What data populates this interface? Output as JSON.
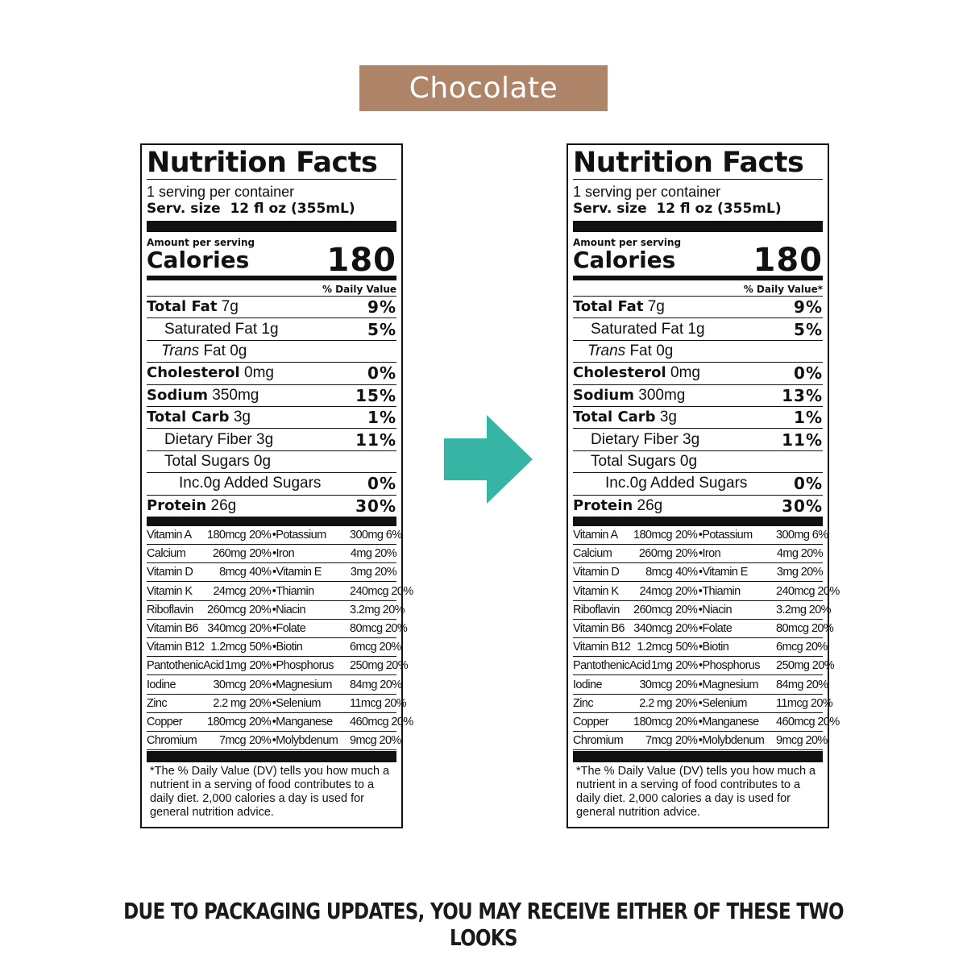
{
  "flavor": "Chocolate",
  "panels": [
    {
      "title": "Nutrition Facts",
      "servings_per_container": "1 serving per container",
      "serving_size_label": "Serv. size",
      "serving_size_value": "12 fl oz (355mL)",
      "amount_per_serving": "Amount per serving",
      "calories_label": "Calories",
      "calories_value": "180",
      "dv_header": "% Daily Value",
      "nutrients": [
        {
          "name": "Total Fat",
          "amount": "7g",
          "dv": "9%"
        },
        {
          "name": "Saturated Fat",
          "amount": "1g",
          "dv": "5%"
        },
        {
          "name_italic": "Trans",
          "name": "Fat",
          "amount": "0g",
          "dv": ""
        },
        {
          "name": "Cholesterol",
          "amount": "0mg",
          "dv": "0%"
        },
        {
          "name": "Sodium",
          "amount": "350mg",
          "dv": "15%"
        },
        {
          "name": "Total Carb",
          "amount": "3g",
          "dv": "1%"
        },
        {
          "name": "Dietary Fiber",
          "amount": "3g",
          "dv": "11%"
        },
        {
          "name": "Total Sugars",
          "amount": "0g",
          "dv": ""
        },
        {
          "name": "Inc.0g Added Sugars",
          "amount": "",
          "dv": "0%"
        },
        {
          "name": "Protein",
          "amount": "26g",
          "dv": "30%"
        }
      ],
      "vitamins": [
        {
          "n1": "Vitamin A",
          "a1": "180mcg",
          "d1": "20%",
          "n2": "Potassium",
          "a2": "300mg",
          "d2": "6%"
        },
        {
          "n1": "Calcium",
          "a1": "260mg",
          "d1": "20%",
          "n2": "Iron",
          "a2": "4mg",
          "d2": "20%"
        },
        {
          "n1": "Vitamin D",
          "a1": "8mcg",
          "d1": "40%",
          "n2": "Vitamin E",
          "a2": "3mg",
          "d2": "20%"
        },
        {
          "n1": "Vitamin K",
          "a1": "24mcg",
          "d1": "20%",
          "n2": "Thiamin",
          "a2": "240mcg",
          "d2": "20%"
        },
        {
          "n1": "Riboflavin",
          "a1": "260mcg",
          "d1": "20%",
          "n2": "Niacin",
          "a2": "3.2mg",
          "d2": "20%"
        },
        {
          "n1": "Vitamin B6",
          "a1": "340mcg",
          "d1": "20%",
          "n2": "Folate",
          "a2": "80mcg",
          "d2": "20%"
        },
        {
          "n1": "Vitamin B12",
          "a1": "1.2mcg",
          "d1": "50%",
          "n2": "Biotin",
          "a2": "6mcg",
          "d2": "20%"
        },
        {
          "n1": "PantothenicAcid",
          "a1": "1mg",
          "d1": "20%",
          "n2": "Phosphorus",
          "a2": "250mg",
          "d2": "20%"
        },
        {
          "n1": "Iodine",
          "a1": "30mcg",
          "d1": "20%",
          "n2": "Magnesium",
          "a2": "84mg",
          "d2": "20%"
        },
        {
          "n1": "Zinc",
          "a1": "2.2 mg",
          "d1": "20%",
          "n2": "Selenium",
          "a2": "11mcg",
          "d2": "20%"
        },
        {
          "n1": "Copper",
          "a1": "180mcg",
          "d1": "20%",
          "n2": "Manganese",
          "a2": "460mcg",
          "d2": "20%"
        },
        {
          "n1": "Chromium",
          "a1": "7mcg",
          "d1": "20%",
          "n2": "Molybdenum",
          "a2": "9mcg",
          "d2": "20%"
        }
      ],
      "footnote": "*The % Daily Value (DV) tells you how much a nutrient in a serving of food contributes to a daily diet. 2,000 calories a day is used for general nutrition advice."
    },
    {
      "title": "Nutrition Facts",
      "servings_per_container": "1 serving per container",
      "serving_size_label": "Serv. size",
      "serving_size_value": "12 fl oz (355mL)",
      "amount_per_serving": "Amount per serving",
      "calories_label": "Calories",
      "calories_value": "180",
      "dv_header": "% Daily Value*",
      "nutrients": [
        {
          "name": "Total Fat",
          "amount": "7g",
          "dv": "9%"
        },
        {
          "name": "Saturated Fat",
          "amount": "1g",
          "dv": "5%"
        },
        {
          "name_italic": "Trans",
          "name": "Fat",
          "amount": "0g",
          "dv": ""
        },
        {
          "name": "Cholesterol",
          "amount": "0mg",
          "dv": "0%"
        },
        {
          "name": "Sodium",
          "amount": "300mg",
          "dv": "13%"
        },
        {
          "name": "Total Carb",
          "amount": "3g",
          "dv": "1%"
        },
        {
          "name": "Dietary Fiber",
          "amount": "3g",
          "dv": "11%"
        },
        {
          "name": "Total Sugars",
          "amount": "0g",
          "dv": ""
        },
        {
          "name": "Inc.0g Added Sugars",
          "amount": "",
          "dv": "0%"
        },
        {
          "name": "Protein",
          "amount": "26g",
          "dv": "30%"
        }
      ],
      "vitamins": [
        {
          "n1": "Vitamin A",
          "a1": "180mcg",
          "d1": "20%",
          "n2": "Potassium",
          "a2": "300mg",
          "d2": "6%"
        },
        {
          "n1": "Calcium",
          "a1": "260mg",
          "d1": "20%",
          "n2": "Iron",
          "a2": "4mg",
          "d2": "20%"
        },
        {
          "n1": "Vitamin D",
          "a1": "8mcg",
          "d1": "40%",
          "n2": "Vitamin E",
          "a2": "3mg",
          "d2": "20%"
        },
        {
          "n1": "Vitamin K",
          "a1": "24mcg",
          "d1": "20%",
          "n2": "Thiamin",
          "a2": "240mcg",
          "d2": "20%"
        },
        {
          "n1": "Riboflavin",
          "a1": "260mcg",
          "d1": "20%",
          "n2": "Niacin",
          "a2": "3.2mg",
          "d2": "20%"
        },
        {
          "n1": "Vitamin B6",
          "a1": "340mcg",
          "d1": "20%",
          "n2": "Folate",
          "a2": "80mcg",
          "d2": "20%"
        },
        {
          "n1": "Vitamin B12",
          "a1": "1.2mcg",
          "d1": "50%",
          "n2": "Biotin",
          "a2": "6mcg",
          "d2": "20%"
        },
        {
          "n1": "PantothenicAcid",
          "a1": "1mg",
          "d1": "20%",
          "n2": "Phosphorus",
          "a2": "250mg",
          "d2": "20%"
        },
        {
          "n1": "Iodine",
          "a1": "30mcg",
          "d1": "20%",
          "n2": "Magnesium",
          "a2": "84mg",
          "d2": "20%"
        },
        {
          "n1": "Zinc",
          "a1": "2.2 mg",
          "d1": "20%",
          "n2": "Selenium",
          "a2": "11mcg",
          "d2": "20%"
        },
        {
          "n1": "Copper",
          "a1": "180mcg",
          "d1": "20%",
          "n2": "Manganese",
          "a2": "460mcg",
          "d2": "20%"
        },
        {
          "n1": "Chromium",
          "a1": "7mcg",
          "d1": "20%",
          "n2": "Molybdenum",
          "a2": "9mcg",
          "d2": "20%"
        }
      ],
      "footnote": "*The % Daily Value (DV) tells you how much a nutrient in a serving of food contributes to a daily diet. 2,000 calories a day is used for general nutrition advice."
    }
  ],
  "disclaimer": "DUE TO PACKAGING UPDATES, YOU MAY RECEIVE EITHER OF THESE TWO LOOKS",
  "colors": {
    "banner": "#ae8569",
    "arrow": "#36b5a5"
  },
  "arrow_icon": "arrow-right-icon"
}
